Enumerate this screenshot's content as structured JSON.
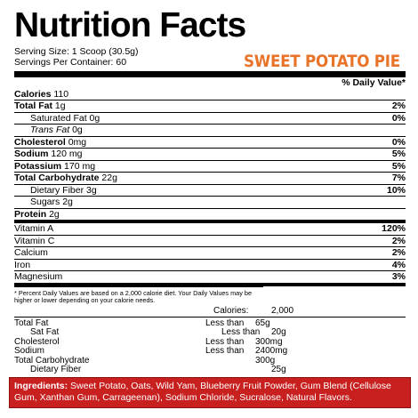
{
  "title": "Nutrition Facts",
  "serving_size": "Serving Size: 1 Scoop (30.5g)",
  "servings_per_container": "Servings Per Container: 60",
  "flavor": "SWEET POTATO PIE",
  "daily_value_header": "% Daily Value*",
  "nutrients": [
    {
      "label": "Calories",
      "amount": "110"
    },
    {
      "label": "Total Fat",
      "amount": "1g",
      "dv": "2%"
    },
    {
      "label": "Saturated Fat",
      "amount": "0g",
      "dv": "0%"
    },
    {
      "label": "Trans Fat",
      "amount": "0g"
    },
    {
      "label": "Cholesterol",
      "amount": "0mg",
      "dv": "0%"
    },
    {
      "label": "Sodium",
      "amount": "120 mg",
      "dv": "5%"
    },
    {
      "label": "Potassium",
      "amount": "170 mg",
      "dv": "5%"
    },
    {
      "label": "Total Carbohydrate",
      "amount": "22g",
      "dv": "7%"
    },
    {
      "label": "Dietary Fiber",
      "amount": "3g",
      "dv": "10%"
    },
    {
      "label": "Sugars",
      "amount": "2g"
    },
    {
      "label": "Protein",
      "amount": "2g"
    }
  ],
  "vitamins": [
    {
      "label": "Vitamin A",
      "dv": "120%"
    },
    {
      "label": "Vitamin C",
      "dv": "2%"
    },
    {
      "label": "Calcium",
      "dv": "2%"
    },
    {
      "label": "Iron",
      "dv": "4%"
    },
    {
      "label": "Magnesium",
      "dv": "3%"
    }
  ],
  "footnote": "* Percent Daily Values are based on a 2,000 calorie diet. Your Daily Values may be higher or lower depending on your calorie needs.",
  "reference": {
    "calories_label": "Calories:",
    "calories_value": "2,000",
    "rows": [
      {
        "label": "Total Fat",
        "limit": "Less than",
        "value": "65g"
      },
      {
        "label": "Sat Fat",
        "limit": "Less than",
        "value": "20g"
      },
      {
        "label": "Cholesterol",
        "limit": "Less than",
        "value": "300mg"
      },
      {
        "label": "Sodium",
        "limit": "Less than",
        "value": "2400mg"
      },
      {
        "label": "Total Carbohydrate",
        "value": "300g"
      },
      {
        "label": "Dietary Fiber",
        "value": "25g"
      }
    ]
  },
  "ingredients": {
    "label": "Ingredients:",
    "text": "Sweet Potato, Oats, Wild Yam, Blueberry Fruit Powder, Gum Blend (Cellulose Gum, Xanthan Gum, Carrageenan), Sodium Chloride, Sucralose, Natural Flavors."
  }
}
